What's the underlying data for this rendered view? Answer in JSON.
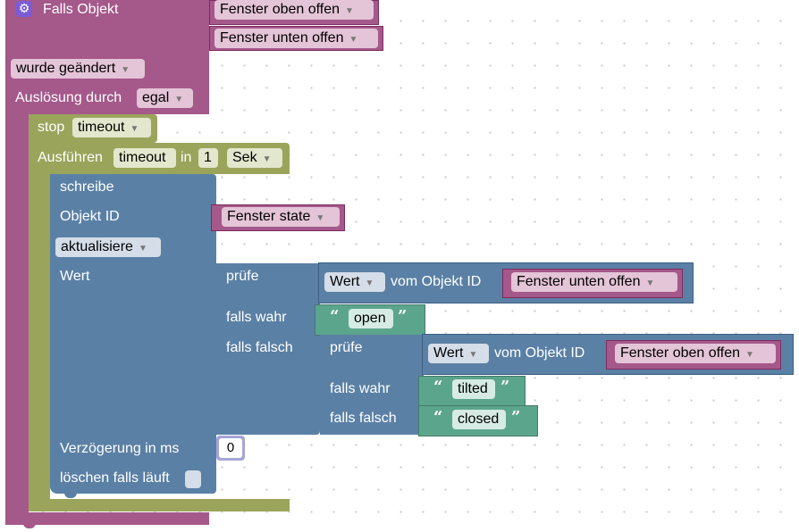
{
  "trigger": {
    "title": "Falls Objekt",
    "objects": [
      "Fenster oben offen",
      "Fenster unten offen"
    ],
    "condition": "wurde geändert",
    "trigger_by_label": "Auslösung durch",
    "trigger_by_value": "egal"
  },
  "stop": {
    "label": "stop",
    "value": "timeout"
  },
  "execute": {
    "label": "Ausführen",
    "name": "timeout",
    "in_label": "in",
    "amount": "1",
    "unit": "Sek"
  },
  "write": {
    "title": "schreibe",
    "object_id_label": "Objekt ID",
    "object": "Fenster state",
    "mode": "aktualisiere",
    "value_label": "Wert",
    "delay_label": "Verzögerung in ms",
    "delay_value": "0",
    "clear_label": "löschen falls läuft"
  },
  "ternary1": {
    "check": "prüfe",
    "prop": "Wert",
    "from_label": "vom Objekt ID",
    "object": "Fenster unten offen",
    "true_label": "falls wahr",
    "true_value": "open",
    "false_label": "falls falsch"
  },
  "ternary2": {
    "check": "prüfe",
    "prop": "Wert",
    "from_label": "vom Objekt ID",
    "object": "Fenster oben offen",
    "true_label": "falls wahr",
    "true_value": "tilted",
    "false_label": "falls falsch",
    "false_value": "closed"
  },
  "colors": {
    "event": "#a5588a",
    "timeout": "#9aa55b",
    "action": "#5b80a5",
    "text": "#5ba58c",
    "gear_icon": "#7b5cd6"
  },
  "icons": {
    "gear": "gear-icon",
    "dropdown": "dropdown-arrow-icon",
    "quote_open": "open-quote-icon",
    "quote_close": "close-quote-icon"
  }
}
